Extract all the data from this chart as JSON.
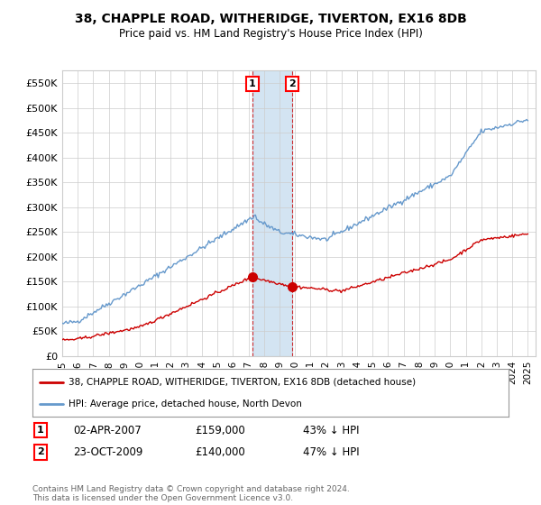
{
  "title": "38, CHAPPLE ROAD, WITHERIDGE, TIVERTON, EX16 8DB",
  "subtitle": "Price paid vs. HM Land Registry's House Price Index (HPI)",
  "ylim": [
    0,
    575000
  ],
  "yticks": [
    0,
    50000,
    100000,
    150000,
    200000,
    250000,
    300000,
    350000,
    400000,
    450000,
    500000,
    550000
  ],
  "ytick_labels": [
    "£0",
    "£50K",
    "£100K",
    "£150K",
    "£200K",
    "£250K",
    "£300K",
    "£350K",
    "£400K",
    "£450K",
    "£500K",
    "£550K"
  ],
  "xlim_left": 1995,
  "xlim_right": 2025.5,
  "sale1_date_num": 2007.25,
  "sale1_price": 159000,
  "sale1_label": "1",
  "sale1_date_str": "02-APR-2007",
  "sale1_pct": "43% ↓ HPI",
  "sale2_date_num": 2009.81,
  "sale2_price": 140000,
  "sale2_label": "2",
  "sale2_date_str": "23-OCT-2009",
  "sale2_pct": "47% ↓ HPI",
  "hpi_color": "#6699cc",
  "price_color": "#cc0000",
  "shade_color": "#cce0f0",
  "grid_color": "#cccccc",
  "background_color": "#ffffff",
  "legend_line1": "38, CHAPPLE ROAD, WITHERIDGE, TIVERTON, EX16 8DB (detached house)",
  "legend_line2": "HPI: Average price, detached house, North Devon",
  "footer": "Contains HM Land Registry data © Crown copyright and database right 2024.\nThis data is licensed under the Open Government Licence v3.0."
}
